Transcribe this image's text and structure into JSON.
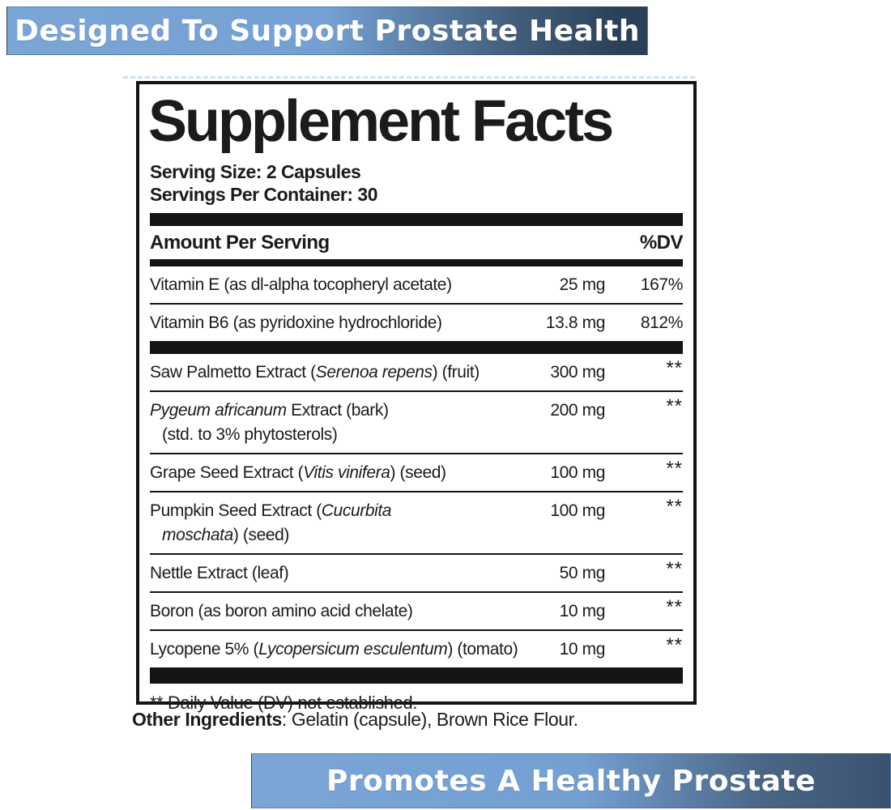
{
  "top_banner": {
    "text": "Designed To Support Prostate Health"
  },
  "bottom_banner": {
    "text": "Promotes A Healthy Prostate"
  },
  "colors": {
    "banner_light_blue": "#7ba5d7",
    "banner_dark_navy": "#2a4058",
    "label_black": "#141414"
  },
  "panel": {
    "title": "Supplement Facts",
    "serving_size": "Serving Size: 2 Capsules",
    "servings_per_container": "Servings Per Container: 30",
    "columns": {
      "amount_header": "Amount Per Serving",
      "dv_header": "%DV"
    },
    "sections": [
      {
        "rows": [
          {
            "name": [
              {
                "t": "Vitamin E (as dl-alpha tocopheryl acetate)"
              }
            ],
            "amount": "25 mg",
            "dv": "167%"
          },
          {
            "name": [
              {
                "t": "Vitamin B6 (as pyridoxine hydrochloride)"
              }
            ],
            "amount": "13.8 mg",
            "dv": "812%"
          }
        ]
      },
      {
        "rows": [
          {
            "name": [
              {
                "t": "Saw Palmetto Extract ("
              },
              {
                "t": "Serenoa repens",
                "i": 1
              },
              {
                "t": ") (fruit)"
              }
            ],
            "amount": "300 mg",
            "dv": "**"
          },
          {
            "name": [
              {
                "t": "Pygeum africanum",
                "i": 1
              },
              {
                "t": " Extract (bark)"
              }
            ],
            "name2": [
              {
                "t": "(std. to 3% phytosterols)"
              }
            ],
            "amount": "200 mg",
            "dv": "**"
          },
          {
            "name": [
              {
                "t": "Grape Seed Extract ("
              },
              {
                "t": "Vitis vinifera",
                "i": 1
              },
              {
                "t": ") (seed)"
              }
            ],
            "amount": "100 mg",
            "dv": "**"
          },
          {
            "name": [
              {
                "t": "Pumpkin Seed Extract ("
              },
              {
                "t": "Cucurbita",
                "i": 1
              }
            ],
            "name2": [
              {
                "t": "moschata",
                "i": 1
              },
              {
                "t": ") (seed)"
              }
            ],
            "amount": "100 mg",
            "dv": "**"
          },
          {
            "name": [
              {
                "t": "Nettle Extract (leaf)"
              }
            ],
            "amount": "50 mg",
            "dv": "**"
          },
          {
            "name": [
              {
                "t": "Boron (as boron amino acid chelate)"
              }
            ],
            "amount": "10 mg",
            "dv": "**"
          },
          {
            "name": [
              {
                "t": "Lycopene 5% ("
              },
              {
                "t": "Lycopersicum esculentum",
                "i": 1
              },
              {
                "t": ") (tomato)"
              }
            ],
            "amount": "10 mg",
            "dv": "**"
          }
        ]
      }
    ],
    "footnote": "** Daily Value (DV) not established."
  },
  "other_ingredients": {
    "label": "Other Ingredients",
    "rest": ": Gelatin (capsule), Brown Rice Flour."
  }
}
